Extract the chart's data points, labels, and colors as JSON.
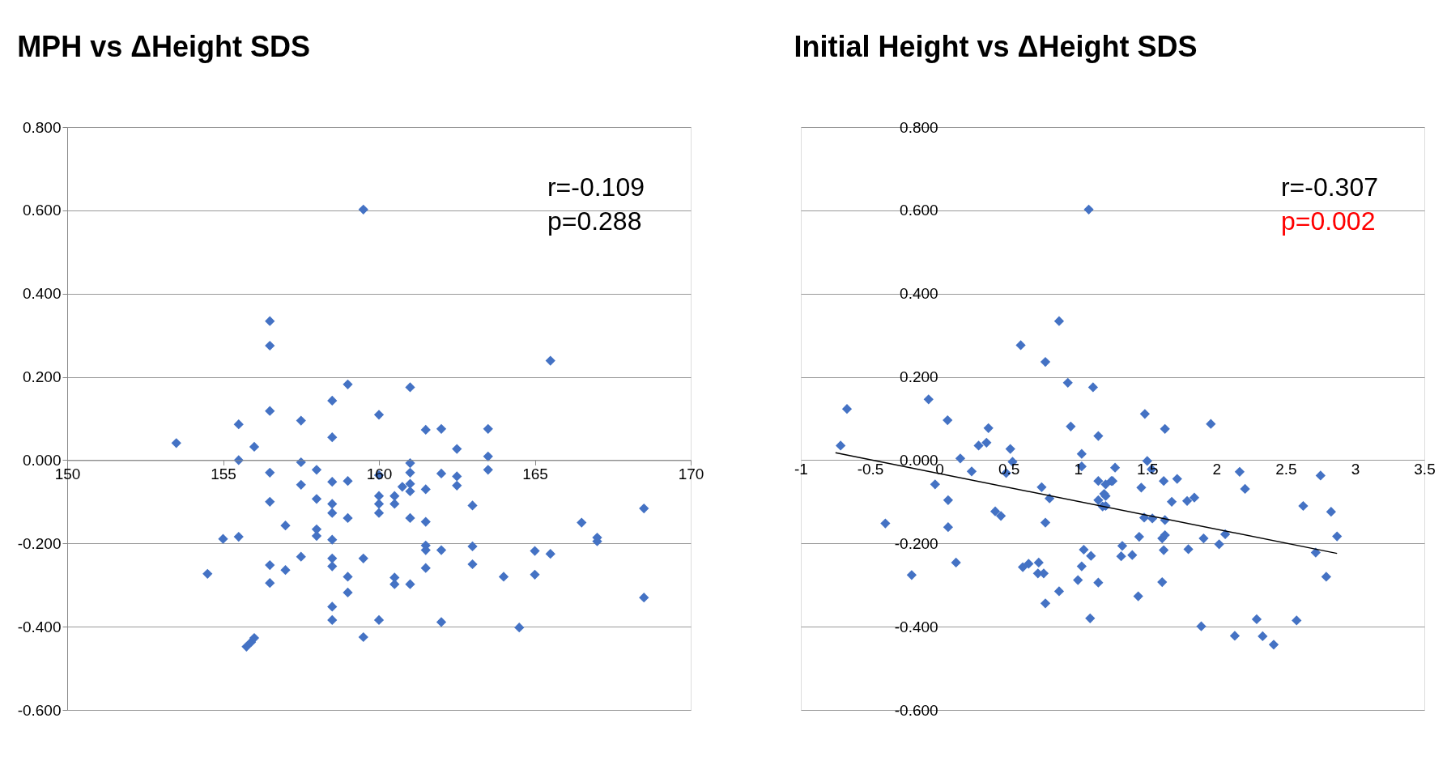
{
  "chart_data": [
    {
      "type": "scatter",
      "title": "MPH vs ΔHeight SDS",
      "grid": "y",
      "xlim": [
        150,
        170
      ],
      "xticks": [
        150,
        155,
        160,
        165,
        170
      ],
      "ylim": [
        -0.6,
        0.8
      ],
      "yticks": [
        {
          "value": -0.6,
          "label": "-0.600"
        },
        {
          "value": -0.4,
          "label": "-0.400"
        },
        {
          "value": -0.2,
          "label": "-0.200"
        },
        {
          "value": 0,
          "label": "0.000"
        },
        {
          "value": 0.2,
          "label": "0.200"
        },
        {
          "value": 0.4,
          "label": "0.400"
        },
        {
          "value": 0.6,
          "label": "0.600"
        },
        {
          "value": 0.8,
          "label": "0.800"
        }
      ],
      "annotations": [
        "r=-0.109",
        "p=0.288"
      ],
      "series": [
        {
          "type": "scatter",
          "marker": "diamond",
          "color": "#4472c4",
          "x": [
            153.5,
            154.5,
            155.0,
            155.5,
            155.5,
            155.5,
            155.75,
            155.9,
            156.0,
            156.0,
            156.5,
            156.5,
            156.5,
            156.5,
            156.5,
            156.5,
            156.5,
            157.0,
            157.0,
            157.5,
            157.5,
            157.5,
            157.5,
            158.0,
            158.0,
            158.0,
            158.0,
            158.5,
            158.5,
            158.5,
            158.5,
            158.5,
            158.5,
            158.5,
            158.5,
            158.5,
            158.5,
            159.0,
            159.0,
            159.0,
            159.0,
            159.0,
            159.5,
            159.5,
            159.5,
            160.0,
            160.0,
            160.0,
            160.0,
            160.0,
            160.0,
            160.5,
            160.5,
            160.5,
            160.5,
            160.75,
            161.0,
            161.0,
            161.0,
            161.0,
            161.0,
            161.0,
            161.0,
            161.5,
            161.5,
            161.5,
            161.5,
            161.5,
            161.5,
            162.0,
            162.0,
            162.0,
            162.0,
            162.5,
            162.5,
            162.5,
            163.0,
            163.0,
            163.0,
            163.5,
            163.5,
            163.5,
            164.0,
            164.5,
            165.0,
            165.0,
            165.5,
            165.5,
            166.5,
            167.0,
            167.0,
            168.5,
            168.5
          ],
          "values": [
            0.041,
            -0.273,
            -0.189,
            0.086,
            0.0,
            -0.184,
            -0.448,
            -0.437,
            -0.427,
            0.032,
            0.334,
            0.275,
            0.118,
            -0.03,
            -0.1,
            -0.252,
            -0.295,
            -0.157,
            -0.264,
            0.095,
            -0.005,
            -0.059,
            -0.232,
            -0.023,
            -0.093,
            -0.166,
            -0.182,
            0.143,
            0.055,
            -0.052,
            -0.105,
            -0.127,
            -0.191,
            -0.236,
            -0.255,
            -0.352,
            -0.384,
            0.182,
            -0.05,
            -0.139,
            -0.28,
            -0.318,
            0.602,
            -0.236,
            -0.425,
            0.109,
            -0.036,
            -0.086,
            -0.105,
            -0.127,
            -0.384,
            -0.086,
            -0.105,
            -0.282,
            -0.298,
            -0.064,
            0.175,
            -0.007,
            -0.03,
            -0.057,
            -0.075,
            -0.139,
            -0.298,
            0.073,
            -0.07,
            -0.148,
            -0.205,
            -0.216,
            -0.259,
            0.075,
            -0.032,
            -0.216,
            -0.389,
            0.027,
            -0.039,
            -0.061,
            -0.109,
            -0.207,
            -0.25,
            0.075,
            0.009,
            -0.023,
            -0.28,
            -0.402,
            -0.218,
            -0.275,
            0.239,
            -0.225,
            -0.15,
            -0.186,
            -0.195,
            -0.116,
            -0.33
          ]
        }
      ]
    },
    {
      "type": "scatter",
      "title": "Initial Height vs ΔHeight SDS",
      "grid": "y",
      "xlim": [
        -1,
        3.5
      ],
      "xticks": [
        -1,
        -0.5,
        0,
        0.5,
        1,
        1.5,
        2,
        2.5,
        3,
        3.5
      ],
      "ylim": [
        -0.6,
        0.8
      ],
      "yticks": [
        {
          "value": -0.6,
          "label": "-0.600"
        },
        {
          "value": -0.4,
          "label": "-0.400"
        },
        {
          "value": -0.2,
          "label": "-0.200"
        },
        {
          "value": 0,
          "label": "0.000"
        },
        {
          "value": 0.2,
          "label": "0.200"
        },
        {
          "value": 0.4,
          "label": "0.400"
        },
        {
          "value": 0.6,
          "label": "0.600"
        },
        {
          "value": 0.8,
          "label": "0.800"
        }
      ],
      "annotations": [
        "r=-0.307",
        "p=0.002"
      ],
      "series": [
        {
          "type": "scatter",
          "marker": "diamond",
          "color": "#4472c4",
          "x": [
            -0.713,
            -0.667,
            -0.39,
            -0.2,
            -0.078,
            -0.031,
            0.059,
            0.063,
            0.063,
            0.12,
            0.151,
            0.233,
            0.283,
            0.34,
            0.354,
            0.403,
            0.444,
            0.482,
            0.512,
            0.528,
            0.587,
            0.602,
            0.644,
            0.717,
            0.711,
            0.738,
            0.753,
            0.765,
            0.765,
            0.765,
            0.795,
            0.864,
            0.864,
            0.927,
            0.948,
            1.0,
            1.027,
            1.027,
            1.027,
            1.042,
            1.078,
            1.088,
            1.094,
            1.109,
            1.147,
            1.147,
            1.147,
            1.178,
            1.189,
            1.241,
            1.147,
            1.268,
            1.25,
            1.2,
            1.2,
            1.2,
            1.483,
            1.5,
            1.532,
            1.457,
            1.619,
            1.716,
            1.628,
            1.677,
            1.788,
            1.84,
            1.959,
            2.167,
            2.206,
            1.478,
            1.537,
            1.628,
            1.442,
            1.32,
            1.312,
            1.392,
            1.608,
            1.628,
            1.619,
            1.797,
            1.907,
            2.019,
            2.063,
            1.608,
            1.435,
            1.89,
            2.132,
            2.29,
            2.333,
            2.413,
            2.578,
            2.626,
            2.751,
            2.827,
            2.87,
            2.716,
            2.792
          ],
          "values": [
            0.035,
            0.123,
            -0.152,
            -0.276,
            0.146,
            -0.058,
            0.096,
            -0.096,
            -0.161,
            -0.246,
            0.004,
            -0.027,
            0.035,
            0.042,
            0.077,
            -0.123,
            -0.134,
            -0.031,
            0.027,
            -0.004,
            0.276,
            -0.257,
            -0.249,
            -0.246,
            -0.272,
            -0.065,
            -0.272,
            0.236,
            -0.15,
            -0.344,
            -0.092,
            0.334,
            -0.315,
            0.186,
            0.081,
            -0.288,
            0.015,
            -0.015,
            -0.255,
            -0.215,
            0.602,
            -0.38,
            -0.23,
            0.175,
            0.058,
            -0.294,
            -0.05,
            -0.111,
            -0.081,
            -0.05,
            -0.096,
            -0.018,
            -0.05,
            -0.058,
            -0.086,
            -0.11,
            0.111,
            -0.002,
            -0.022,
            -0.066,
            -0.05,
            -0.045,
            0.075,
            -0.1,
            -0.098,
            -0.09,
            0.087,
            -0.028,
            -0.069,
            -0.138,
            -0.14,
            -0.144,
            -0.184,
            -0.206,
            -0.231,
            -0.228,
            -0.188,
            -0.18,
            -0.216,
            -0.214,
            -0.188,
            -0.202,
            -0.178,
            -0.293,
            -0.327,
            -0.399,
            -0.422,
            -0.382,
            -0.423,
            -0.443,
            -0.385,
            -0.11,
            -0.037,
            -0.124,
            -0.183,
            -0.222,
            -0.28
          ]
        },
        {
          "type": "line",
          "color": "#000000",
          "x": [
            -0.75,
            2.87
          ],
          "values": [
            0.018,
            -0.224
          ]
        }
      ]
    }
  ]
}
